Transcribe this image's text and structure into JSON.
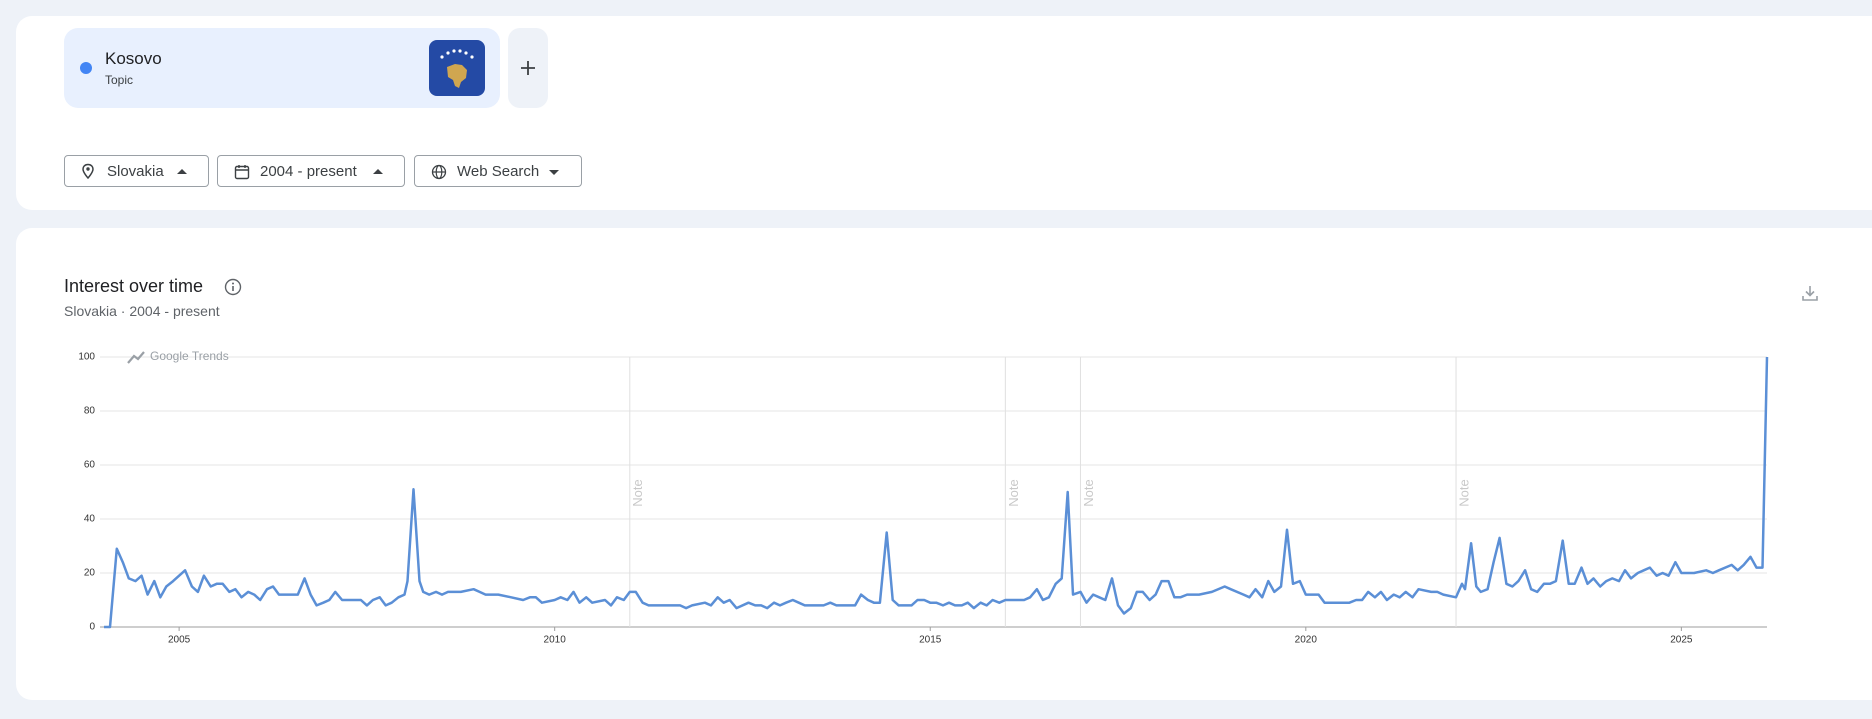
{
  "chip": {
    "name": "Kosovo",
    "type": "Topic"
  },
  "filters": [
    "Slovakia",
    "2004 - present",
    "Web Search"
  ],
  "chart_data": {
    "type": "line",
    "title": "Interest over time",
    "subtitle": "Slovakia  ·  2004 - present",
    "watermark": "Google Trends",
    "color": "#5b8fd6",
    "grid": true,
    "xlim": [
      2004,
      2026.14
    ],
    "xticks": [
      2005,
      2010,
      2015,
      2020,
      2025
    ],
    "ylim": [
      0,
      100
    ],
    "yticks": [
      0,
      20,
      40,
      60,
      80,
      100
    ],
    "notes": [
      {
        "x": 2011,
        "label": "Note"
      },
      {
        "x": 2016,
        "label": "Note"
      },
      {
        "x": 2017,
        "label": "Note"
      },
      {
        "x": 2022,
        "label": "Note"
      }
    ],
    "x": [
      2004.0,
      2004.08,
      2004.17,
      2004.25,
      2004.33,
      2004.42,
      2004.5,
      2004.58,
      2004.67,
      2004.75,
      2004.83,
      2004.92,
      2005.0,
      2005.08,
      2005.17,
      2005.25,
      2005.33,
      2005.42,
      2005.5,
      2005.58,
      2005.67,
      2005.75,
      2005.83,
      2005.92,
      2006.0,
      2006.08,
      2006.17,
      2006.25,
      2006.33,
      2006.5,
      2006.58,
      2006.67,
      2006.75,
      2006.83,
      2006.92,
      2007.0,
      2007.08,
      2007.17,
      2007.33,
      2007.42,
      2007.5,
      2007.58,
      2007.67,
      2007.75,
      2007.83,
      2007.92,
      2008.0,
      2008.04,
      2008.12,
      2008.2,
      2008.25,
      2008.33,
      2008.42,
      2008.5,
      2008.58,
      2008.75,
      2008.92,
      2009.0,
      2009.08,
      2009.25,
      2009.42,
      2009.58,
      2009.67,
      2009.75,
      2009.83,
      2010.0,
      2010.08,
      2010.17,
      2010.25,
      2010.33,
      2010.42,
      2010.5,
      2010.67,
      2010.75,
      2010.83,
      2010.92,
      2011.0,
      2011.08,
      2011.17,
      2011.25,
      2011.42,
      2011.58,
      2011.67,
      2011.75,
      2011.83,
      2012.0,
      2012.08,
      2012.17,
      2012.25,
      2012.33,
      2012.42,
      2012.58,
      2012.67,
      2012.75,
      2012.83,
      2012.92,
      2013.0,
      2013.08,
      2013.17,
      2013.25,
      2013.33,
      2013.42,
      2013.58,
      2013.67,
      2013.75,
      2013.92,
      2014.0,
      2014.08,
      2014.17,
      2014.25,
      2014.33,
      2014.42,
      2014.5,
      2014.58,
      2014.75,
      2014.83,
      2014.92,
      2015.0,
      2015.08,
      2015.17,
      2015.25,
      2015.33,
      2015.42,
      2015.5,
      2015.58,
      2015.67,
      2015.75,
      2015.83,
      2015.92,
      2016.0,
      2016.08,
      2016.17,
      2016.25,
      2016.33,
      2016.42,
      2016.5,
      2016.58,
      2016.67,
      2016.75,
      2016.83,
      2016.9,
      2017.0,
      2017.08,
      2017.17,
      2017.25,
      2017.33,
      2017.42,
      2017.5,
      2017.58,
      2017.67,
      2017.75,
      2017.83,
      2017.92,
      2018.0,
      2018.08,
      2018.17,
      2018.25,
      2018.33,
      2018.42,
      2018.58,
      2018.75,
      2018.92,
      2019.0,
      2019.17,
      2019.25,
      2019.33,
      2019.42,
      2019.5,
      2019.58,
      2019.67,
      2019.75,
      2019.83,
      2019.92,
      2020.0,
      2020.17,
      2020.25,
      2020.42,
      2020.58,
      2020.67,
      2020.75,
      2020.83,
      2020.92,
      2021.0,
      2021.08,
      2021.17,
      2021.25,
      2021.33,
      2021.42,
      2021.5,
      2021.67,
      2021.75,
      2021.83,
      2022.0,
      2022.08,
      2022.12,
      2022.2,
      2022.27,
      2022.33,
      2022.42,
      2022.5,
      2022.58,
      2022.67,
      2022.75,
      2022.83,
      2022.92,
      2023.0,
      2023.08,
      2023.17,
      2023.25,
      2023.33,
      2023.42,
      2023.5,
      2023.58,
      2023.67,
      2023.75,
      2023.83,
      2023.92,
      2024.0,
      2024.08,
      2024.17,
      2024.25,
      2024.33,
      2024.42,
      2024.5,
      2024.58,
      2024.67,
      2024.75,
      2024.83,
      2024.92,
      2025.0,
      2025.17,
      2025.33,
      2025.42,
      2025.5,
      2025.67,
      2025.75,
      2025.83,
      2025.92,
      2026.0,
      2026.08,
      2026.14
    ],
    "values": [
      0,
      0,
      29,
      24,
      18,
      17,
      19,
      12,
      17,
      11,
      15,
      17,
      19,
      21,
      15,
      13,
      19,
      15,
      16,
      16,
      13,
      14,
      11,
      13,
      12,
      10,
      14,
      15,
      12,
      12,
      12,
      18,
      12,
      8,
      9,
      10,
      13,
      10,
      10,
      10,
      8,
      10,
      11,
      8,
      9,
      11,
      12,
      17,
      51,
      17,
      13,
      12,
      13,
      12,
      13,
      13,
      14,
      13,
      12,
      12,
      11,
      10,
      11,
      11,
      9,
      10,
      11,
      10,
      13,
      9,
      11,
      9,
      10,
      8,
      11,
      10,
      13,
      13,
      9,
      8,
      8,
      8,
      8,
      7,
      8,
      9,
      8,
      11,
      9,
      10,
      7,
      9,
      8,
      8,
      7,
      9,
      8,
      9,
      10,
      9,
      8,
      8,
      8,
      9,
      8,
      8,
      8,
      12,
      10,
      9,
      9,
      35,
      10,
      8,
      8,
      10,
      10,
      9,
      9,
      8,
      9,
      8,
      8,
      9,
      7,
      9,
      8,
      10,
      9,
      10,
      10,
      10,
      10,
      11,
      14,
      10,
      11,
      16,
      18,
      50,
      12,
      13,
      9,
      12,
      11,
      10,
      18,
      8,
      5,
      7,
      13,
      13,
      10,
      12,
      17,
      17,
      11,
      11,
      12,
      12,
      13,
      15,
      14,
      12,
      11,
      14,
      11,
      17,
      13,
      15,
      36,
      16,
      17,
      12,
      12,
      9,
      9,
      9,
      10,
      10,
      13,
      11,
      13,
      10,
      12,
      11,
      13,
      11,
      14,
      13,
      13,
      12,
      11,
      16,
      14,
      31,
      15,
      13,
      14,
      24,
      33,
      16,
      15,
      17,
      21,
      14,
      13,
      16,
      16,
      17,
      32,
      16,
      16,
      22,
      16,
      18,
      15,
      17,
      18,
      17,
      21,
      18,
      20,
      21,
      22,
      19,
      20,
      19,
      24,
      20,
      20,
      21,
      20,
      21,
      23,
      21,
      23,
      26,
      22,
      22,
      100
    ]
  }
}
